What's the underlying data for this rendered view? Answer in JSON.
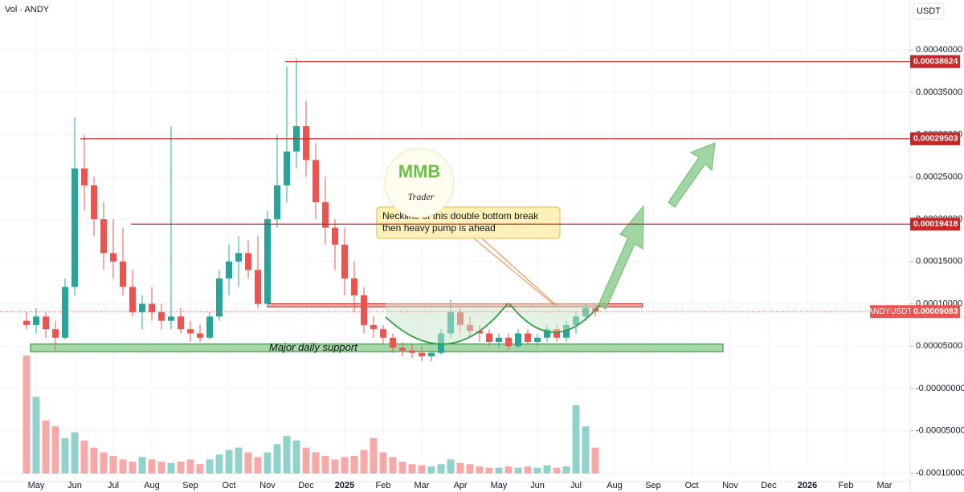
{
  "chart_data": {
    "type": "candlestick",
    "header": "Vol · ANDY",
    "currency": "USDT",
    "categories": [
      null,
      "May",
      null,
      null,
      null,
      "Jun",
      null,
      null,
      null,
      "Jul",
      null,
      null,
      null,
      "Aug",
      null,
      null,
      null,
      "Sep",
      null,
      null,
      null,
      "Oct",
      null,
      null,
      null,
      "Nov",
      null,
      null,
      null,
      "Dec",
      null,
      null,
      null,
      "2025",
      null,
      null,
      null,
      "Feb",
      null,
      null,
      null,
      "Mar",
      null,
      null,
      null,
      "Apr",
      null,
      null,
      null,
      "May",
      null,
      null,
      null,
      "Jun",
      null,
      null,
      null,
      "Jul",
      null,
      null,
      null,
      "Aug",
      null,
      null,
      null,
      "Sep",
      null,
      null,
      null,
      "Oct",
      null,
      null,
      null,
      "Nov",
      null,
      null,
      null,
      "Dec",
      null,
      null,
      null,
      "2026",
      null,
      null,
      null,
      "Feb",
      null,
      null,
      null,
      "Mar",
      null,
      null
    ],
    "open": [
      8e-05,
      7.5e-05,
      8.5e-05,
      7e-05,
      6e-05,
      0.00012,
      0.00026,
      0.00024,
      0.0002,
      0.00016,
      0.00015,
      0.00012,
      9e-05,
      0.0001,
      9e-05,
      8e-05,
      8.5e-05,
      7e-05,
      6.5e-05,
      6e-05,
      8.5e-05,
      0.00013,
      0.00015,
      0.00016,
      0.00014,
      0.0001,
      0.0002,
      0.00024,
      0.00028,
      0.00031,
      0.00027,
      0.00022,
      0.00019,
      0.00017,
      0.00013,
      0.00011,
      7.5e-05,
      7e-05,
      6e-05,
      4.8e-05,
      4.5e-05,
      4.2e-05,
      3.8e-05,
      4.2e-05,
      6.5e-05,
      9e-05,
      7.5e-05,
      6.8e-05,
      6.5e-05,
      5.5e-05,
      6e-05,
      5e-05,
      6.5e-05,
      5.5e-05,
      6e-05,
      7e-05,
      6e-05,
      7.5e-05,
      8.5e-05,
      9.5e-05,
      null,
      null,
      null,
      null,
      null,
      null,
      null,
      null,
      null,
      null,
      null,
      null,
      null,
      null,
      null,
      null,
      null,
      null,
      null,
      null,
      null,
      null,
      null,
      null,
      null,
      null,
      null,
      null,
      null,
      null,
      null,
      null
    ],
    "high": [
      9e-05,
      9.5e-05,
      9e-05,
      8e-05,
      0.00013,
      0.00032,
      0.0003,
      0.00025,
      0.00022,
      0.0002,
      0.00019,
      0.00014,
      0.00011,
      0.00012,
      0.0001,
      0.00031,
      9.5e-05,
      8e-05,
      7.5e-05,
      9e-05,
      0.00014,
      0.00017,
      0.00018,
      0.000175,
      0.00018,
      0.00021,
      0.0003,
      0.00038,
      0.00039,
      0.00034,
      0.00029,
      0.00025,
      0.0002,
      0.00019,
      0.00015,
      0.00012,
      8.5e-05,
      7.5e-05,
      6.5e-05,
      5.5e-05,
      5.2e-05,
      5e-05,
      4.5e-05,
      7e-05,
      0.000105,
      9.5e-05,
      8.5e-05,
      7.5e-05,
      7e-05,
      6.5e-05,
      6.5e-05,
      7e-05,
      7e-05,
      6.5e-05,
      7.5e-05,
      7.5e-05,
      8e-05,
      9e-05,
      0.0001,
      0.0001,
      null,
      null,
      null,
      null,
      null,
      null,
      null,
      null,
      null,
      null,
      null,
      null,
      null,
      null,
      null,
      null,
      null,
      null,
      null,
      null,
      null,
      null,
      null,
      null,
      null,
      null,
      null,
      null,
      null,
      null,
      null,
      null
    ],
    "low": [
      7e-05,
      6.5e-05,
      6e-05,
      4.5e-05,
      5.8e-05,
      0.00011,
      0.00021,
      0.00018,
      0.00014,
      0.00013,
      0.00011,
      8.5e-05,
      7e-05,
      8e-05,
      7e-05,
      7e-05,
      6.5e-05,
      5.5e-05,
      5.5e-05,
      5.8e-05,
      8e-05,
      0.00011,
      0.00012,
      0.00013,
      9.5e-05,
      9.5e-05,
      0.00019,
      0.00022,
      0.00026,
      0.00025,
      0.0002,
      0.00017,
      0.00014,
      0.00011,
      9e-05,
      6.5e-05,
      6e-05,
      5.2e-05,
      4.2e-05,
      3.8e-05,
      3.6e-05,
      3.2e-05,
      3.2e-05,
      4e-05,
      6e-05,
      6.5e-05,
      6e-05,
      5.5e-05,
      5e-05,
      4.8e-05,
      4.5e-05,
      4.8e-05,
      5.2e-05,
      5e-05,
      5.5e-05,
      5.5e-05,
      5.5e-05,
      6.5e-05,
      8e-05,
      8.5e-05,
      null,
      null,
      null,
      null,
      null,
      null,
      null,
      null,
      null,
      null,
      null,
      null,
      null,
      null,
      null,
      null,
      null,
      null,
      null,
      null,
      null,
      null,
      null,
      null,
      null,
      null,
      null,
      null,
      null,
      null,
      null,
      null
    ],
    "close": [
      7.5e-05,
      8.5e-05,
      7e-05,
      6e-05,
      0.00012,
      0.00026,
      0.00024,
      0.0002,
      0.00016,
      0.00015,
      0.00012,
      9e-05,
      0.0001,
      9e-05,
      8e-05,
      8.5e-05,
      7e-05,
      6.5e-05,
      6e-05,
      8.5e-05,
      0.00013,
      0.00015,
      0.00016,
      0.00014,
      0.0001,
      0.0002,
      0.00024,
      0.00028,
      0.00031,
      0.00027,
      0.00022,
      0.00019,
      0.00017,
      0.00013,
      0.00011,
      7.5e-05,
      7e-05,
      6e-05,
      4.8e-05,
      4.5e-05,
      4.2e-05,
      3.8e-05,
      4.2e-05,
      6.5e-05,
      9e-05,
      7.5e-05,
      6.8e-05,
      6.5e-05,
      5.5e-05,
      6e-05,
      5e-05,
      6.5e-05,
      5.5e-05,
      6e-05,
      7e-05,
      6e-05,
      7.5e-05,
      8.5e-05,
      9.5e-05,
      9.083e-05,
      null,
      null,
      null,
      null,
      null,
      null,
      null,
      null,
      null,
      null,
      null,
      null,
      null,
      null,
      null,
      null,
      null,
      null,
      null,
      null,
      null,
      null,
      null,
      null,
      null,
      null,
      null,
      null,
      null,
      null,
      null,
      null
    ],
    "volume": [
      100,
      65,
      45,
      40,
      30,
      35,
      28,
      22,
      18,
      15,
      12,
      10,
      14,
      12,
      10,
      9,
      10,
      12,
      8,
      12,
      16,
      20,
      22,
      18,
      14,
      18,
      25,
      32,
      28,
      22,
      18,
      15,
      12,
      14,
      15,
      20,
      30,
      18,
      14,
      10,
      8,
      7,
      6,
      8,
      12,
      9,
      8,
      6,
      5,
      5,
      6,
      5,
      6,
      5,
      7,
      5,
      6,
      58,
      40,
      22,
      null,
      null,
      null,
      null,
      null,
      null,
      null,
      null,
      null,
      null,
      null,
      null,
      null,
      null,
      null,
      null,
      null,
      null,
      null,
      null,
      null,
      null,
      null,
      null,
      null,
      null,
      null,
      null,
      null,
      null,
      null,
      null
    ],
    "up_color": "#26a69a",
    "down_color": "#ef5350",
    "ylim": [
      -0.00011,
      0.000459
    ],
    "yticks": [
      {
        "value": 0.0004,
        "label": "0.00040000"
      },
      {
        "value": 0.00035,
        "label": "0.00035000"
      },
      {
        "value": 0.0003,
        "label": "0.00030000"
      },
      {
        "value": 0.00025,
        "label": "0.00025000"
      },
      {
        "value": 0.0002,
        "label": "0.00020000"
      },
      {
        "value": 0.00015,
        "label": "0.00015000"
      },
      {
        "value": 0.0001,
        "label": "0.00010000"
      },
      {
        "value": 5e-05,
        "label": "0.00005000"
      },
      {
        "value": 0,
        "label": "-0.00000000"
      },
      {
        "value": -5e-05,
        "label": "-0.00005000"
      },
      {
        "value": -0.0001,
        "label": "-0.00010000"
      }
    ],
    "grid": true,
    "levels": [
      {
        "value": 0.00038624,
        "label": "0.00038624"
      },
      {
        "value": 0.00029503,
        "label": "0.00029503"
      },
      {
        "value": 0.00019418,
        "label": "0.00019418"
      }
    ],
    "last_price": {
      "name": "ANDYUSDT",
      "value": 9.083e-05,
      "label": "0.00009083"
    },
    "neckline": {
      "low": 9.65e-05,
      "high": 0.0001
    },
    "support": {
      "low": 4.35e-05,
      "high": 5.25e-05,
      "label": "Major daily support"
    },
    "annotation": [
      "Neckline of this double bottom break",
      "then heavy pump is ahead"
    ],
    "logo": {
      "mark": "MMB",
      "text": "Trader"
    }
  }
}
